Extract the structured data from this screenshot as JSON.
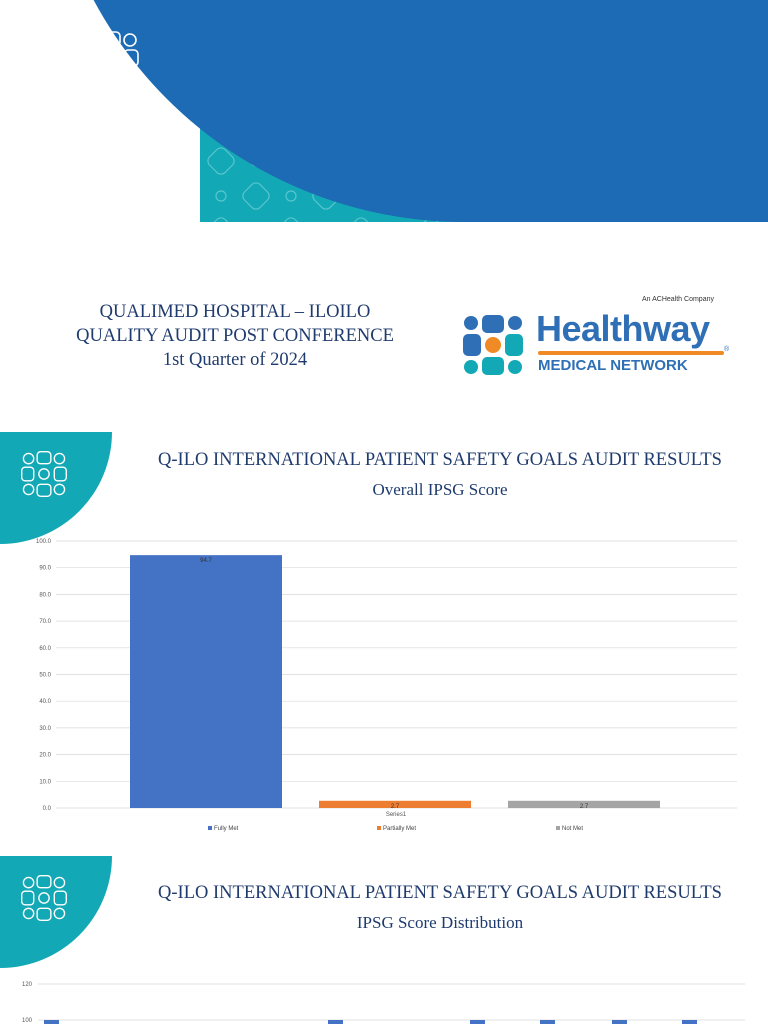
{
  "colors": {
    "teal": "#13a8b5",
    "blue": "#1c6bb4",
    "navy_text": "#1f3b6e",
    "brand_blue": "#2f6fb6",
    "brand_orange": "#f08a24"
  },
  "header": {
    "hospital": "QUALIMED HOSPITAL – ILOILO",
    "conference": "QUALITY AUDIT POST CONFERENCE",
    "period": "1st Quarter of 2024"
  },
  "brand": {
    "tagline": "An ACHealth Company",
    "name": "Healthway",
    "sub": "MEDICAL NETWORK",
    "reg": "®",
    "logo_icon": "healthway-logo-icon"
  },
  "slide2": {
    "title": "Q-ILO INTERNATIONAL PATIENT SAFETY GOALS AUDIT RESULTS",
    "subtitle": "Overall IPSG Score"
  },
  "slide3": {
    "title": "Q-ILO INTERNATIONAL PATIENT SAFETY GOALS AUDIT RESULTS",
    "subtitle": "IPSG Score Distribution"
  },
  "chart_data": [
    {
      "type": "bar",
      "title": "",
      "xlabel": "",
      "ylabel": "",
      "categories": [
        "Series1"
      ],
      "ylim": [
        0,
        100
      ],
      "yticks": [
        "0.0",
        "10.0",
        "20.0",
        "30.0",
        "40.0",
        "50.0",
        "60.0",
        "70.0",
        "80.0",
        "90.0",
        "100.0"
      ],
      "grid": true,
      "legend": "bottom",
      "series": [
        {
          "name": "Fully Met",
          "values": [
            94.7
          ],
          "label": "94.7",
          "color": "#4472c4"
        },
        {
          "name": "Partially Met",
          "values": [
            2.7
          ],
          "label": "2.7",
          "color": "#ed7d31"
        },
        {
          "name": "Not Met",
          "values": [
            2.7
          ],
          "label": "2.7",
          "color": "#a5a5a5"
        }
      ]
    },
    {
      "type": "bar",
      "title": "",
      "xlabel": "",
      "ylabel": "",
      "ylim": [
        0,
        120
      ],
      "yticks": [
        "100",
        "120"
      ],
      "grid": true,
      "partial": true,
      "visible_bar_tops": [
        100,
        100,
        100,
        100,
        100,
        100
      ],
      "bar_color": "#4472c4"
    }
  ]
}
